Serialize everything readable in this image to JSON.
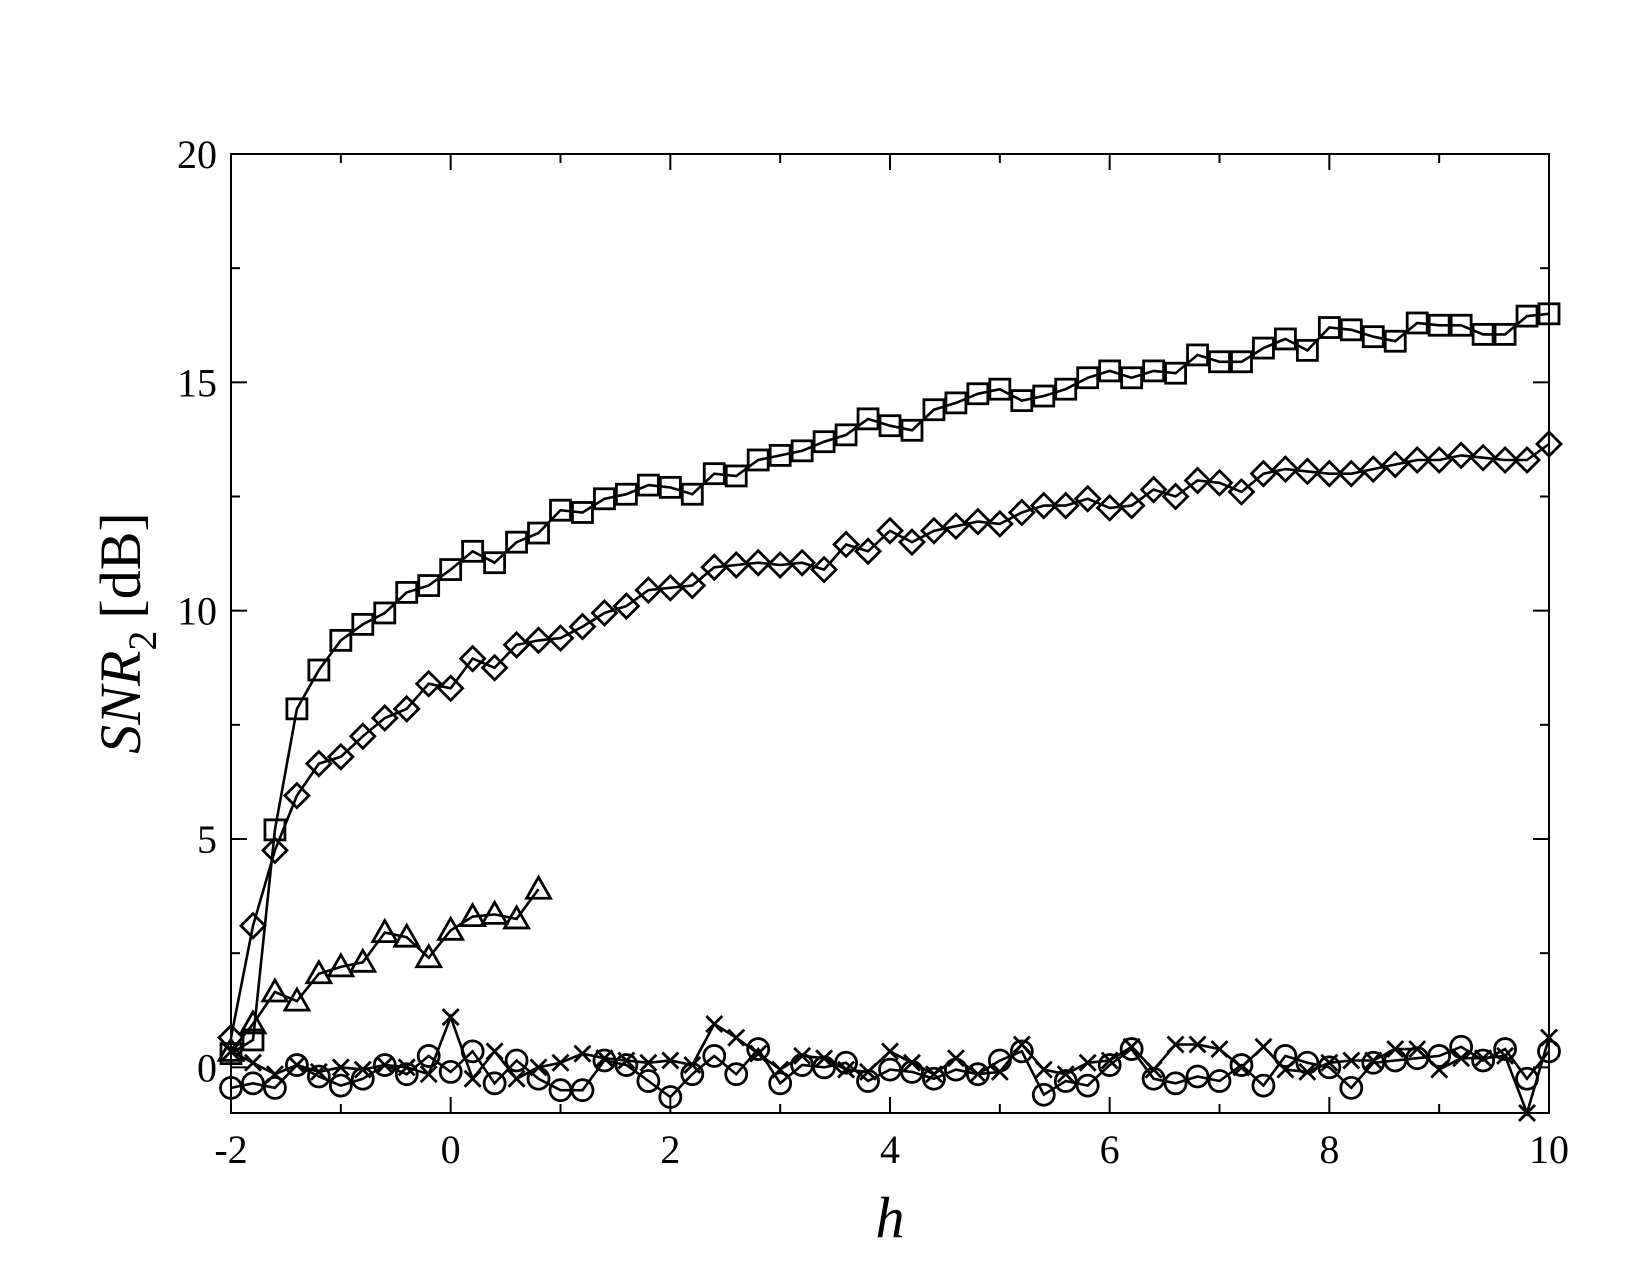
{
  "chart_data": {
    "type": "line",
    "xlabel": "h",
    "ylabel": {
      "main": "SNR",
      "subscript": "2",
      "unit": "[dB]"
    },
    "xlim": [
      -2,
      10
    ],
    "ylim": [
      -1,
      20
    ],
    "xticks": [
      -2,
      0,
      2,
      4,
      6,
      8,
      10
    ],
    "yticks": [
      0,
      5,
      10,
      15,
      20
    ],
    "xtick_labels": [
      "-2",
      "0",
      "2",
      "4",
      "6",
      "8",
      "10"
    ],
    "ytick_labels": [
      "0",
      "5",
      "10",
      "15",
      "20"
    ],
    "grid": false,
    "legend": "none",
    "series": [
      {
        "marker": "square",
        "x": [
          -2,
          -1.8,
          -1.6,
          -1.4,
          -1.2,
          -1.0,
          -0.8,
          -0.6,
          -0.4,
          -0.2,
          0,
          0.2,
          0.4,
          0.6,
          0.8,
          1.0,
          1.2,
          1.4,
          1.6,
          1.8,
          2.0,
          2.2,
          2.4,
          2.6,
          2.8,
          3.0,
          3.2,
          3.4,
          3.6,
          3.8,
          4.0,
          4.2,
          4.4,
          4.6,
          4.8,
          5.0,
          5.2,
          5.4,
          5.6,
          5.8,
          6.0,
          6.2,
          6.4,
          6.6,
          6.8,
          7.0,
          7.2,
          7.4,
          7.6,
          7.8,
          8.0,
          8.2,
          8.4,
          8.6,
          8.8,
          9.0,
          9.2,
          9.4,
          9.6,
          9.8,
          10.0
        ],
        "y": [
          0.3,
          0.6,
          5.2,
          7.85,
          8.7,
          9.35,
          9.7,
          9.95,
          10.4,
          10.55,
          10.9,
          11.3,
          11.05,
          11.5,
          11.7,
          12.2,
          12.15,
          12.45,
          12.55,
          12.75,
          12.7,
          12.55,
          13.0,
          12.95,
          13.3,
          13.4,
          13.5,
          13.7,
          13.85,
          14.2,
          14.05,
          13.95,
          14.4,
          14.55,
          14.75,
          14.85,
          14.6,
          14.7,
          14.85,
          15.1,
          15.25,
          15.1,
          15.25,
          15.2,
          15.6,
          15.45,
          15.45,
          15.75,
          15.95,
          15.7,
          16.2,
          16.15,
          16.0,
          15.9,
          16.3,
          16.25,
          16.25,
          16.05,
          16.05,
          16.45,
          16.5
        ]
      },
      {
        "marker": "diamond",
        "x": [
          -2,
          -1.8,
          -1.6,
          -1.4,
          -1.2,
          -1.0,
          -0.8,
          -0.6,
          -0.4,
          -0.2,
          0,
          0.2,
          0.4,
          0.6,
          0.8,
          1.0,
          1.2,
          1.4,
          1.6,
          1.8,
          2.0,
          2.2,
          2.4,
          2.6,
          2.8,
          3.0,
          3.2,
          3.4,
          3.6,
          3.8,
          4.0,
          4.2,
          4.4,
          4.6,
          4.8,
          5.0,
          5.2,
          5.4,
          5.6,
          5.8,
          6.0,
          6.2,
          6.4,
          6.6,
          6.8,
          7.0,
          7.2,
          7.4,
          7.6,
          7.8,
          8.0,
          8.2,
          8.4,
          8.6,
          8.8,
          9.0,
          9.2,
          9.4,
          9.6,
          9.8,
          10.0
        ],
        "y": [
          0.65,
          3.1,
          4.75,
          5.95,
          6.65,
          6.8,
          7.25,
          7.65,
          7.85,
          8.4,
          8.3,
          8.95,
          8.75,
          9.25,
          9.35,
          9.4,
          9.65,
          9.95,
          10.1,
          10.45,
          10.5,
          10.55,
          10.95,
          11.0,
          11.05,
          11.0,
          11.05,
          10.9,
          11.45,
          11.3,
          11.75,
          11.5,
          11.75,
          11.85,
          11.95,
          11.9,
          12.15,
          12.3,
          12.3,
          12.45,
          12.25,
          12.3,
          12.65,
          12.5,
          12.85,
          12.8,
          12.6,
          13.0,
          13.1,
          13.05,
          13.0,
          13.0,
          13.1,
          13.2,
          13.3,
          13.3,
          13.4,
          13.35,
          13.3,
          13.3,
          13.65
        ]
      },
      {
        "marker": "triangle",
        "x": [
          -2,
          -1.8,
          -1.6,
          -1.4,
          -1.2,
          -1.0,
          -0.8,
          -0.6,
          -0.4,
          -0.2,
          0,
          0.2,
          0.4,
          0.6,
          0.8
        ],
        "y": [
          0.35,
          0.95,
          1.65,
          1.45,
          2.05,
          2.2,
          2.3,
          2.95,
          2.85,
          2.4,
          3.0,
          3.3,
          3.35,
          3.25,
          3.9
        ]
      },
      {
        "marker": "x",
        "x": [
          -2,
          -1.8,
          -1.6,
          -1.4,
          -1.2,
          -1.0,
          -0.8,
          -0.6,
          -0.4,
          -0.2,
          0,
          0.2,
          0.4,
          0.6,
          0.8,
          1.0,
          1.2,
          1.4,
          1.6,
          1.8,
          2.0,
          2.2,
          2.4,
          2.6,
          2.8,
          3.0,
          3.2,
          3.4,
          3.6,
          3.8,
          4.0,
          4.2,
          4.4,
          4.6,
          4.8,
          5.0,
          5.2,
          5.4,
          5.6,
          5.8,
          6.0,
          6.2,
          6.4,
          6.6,
          6.8,
          7.0,
          7.2,
          7.4,
          7.6,
          7.8,
          8.0,
          8.2,
          8.4,
          8.6,
          8.8,
          9.0,
          9.2,
          9.4,
          9.6,
          9.8,
          10.0
        ],
        "y": [
          0.35,
          0.1,
          -0.15,
          0.05,
          -0.1,
          0.0,
          -0.05,
          0.05,
          0.0,
          -0.15,
          1.1,
          -0.25,
          0.35,
          -0.25,
          0.0,
          0.1,
          0.3,
          0.2,
          0.15,
          0.1,
          0.15,
          0.05,
          0.95,
          0.65,
          0.3,
          -0.05,
          0.25,
          0.2,
          -0.05,
          -0.1,
          0.35,
          0.1,
          -0.15,
          0.2,
          -0.15,
          -0.1,
          0.5,
          -0.05,
          -0.15,
          0.1,
          0.15,
          0.45,
          -0.05,
          0.5,
          0.5,
          0.4,
          0.0,
          0.45,
          -0.05,
          -0.1,
          0.1,
          0.15,
          0.15,
          0.4,
          0.4,
          -0.05,
          0.2,
          0.2,
          0.25,
          -1.0,
          0.65
        ]
      },
      {
        "marker": "circle",
        "x": [
          -2,
          -1.8,
          -1.6,
          -1.4,
          -1.2,
          -1.0,
          -0.8,
          -0.6,
          -0.4,
          -0.2,
          0,
          0.2,
          0.4,
          0.6,
          0.8,
          1.0,
          1.2,
          1.4,
          1.6,
          1.8,
          2.0,
          2.2,
          2.4,
          2.6,
          2.8,
          3.0,
          3.2,
          3.4,
          3.6,
          3.8,
          4.0,
          4.2,
          4.4,
          4.6,
          4.8,
          5.0,
          5.2,
          5.4,
          5.6,
          5.8,
          6.0,
          6.2,
          6.4,
          6.6,
          6.8,
          7.0,
          7.2,
          7.4,
          7.6,
          7.8,
          8.0,
          8.2,
          8.4,
          8.6,
          8.8,
          9.0,
          9.2,
          9.4,
          9.6,
          9.8,
          10.0
        ],
        "y": [
          -0.45,
          -0.35,
          -0.45,
          0.05,
          -0.2,
          -0.4,
          -0.25,
          0.05,
          -0.15,
          0.25,
          -0.1,
          0.35,
          -0.35,
          0.15,
          -0.25,
          -0.5,
          -0.5,
          0.15,
          0.05,
          -0.3,
          -0.65,
          -0.15,
          0.25,
          -0.15,
          0.4,
          -0.35,
          0.05,
          0.0,
          0.1,
          -0.3,
          -0.05,
          -0.1,
          -0.25,
          -0.05,
          -0.15,
          0.15,
          0.35,
          -0.6,
          -0.3,
          -0.4,
          0.05,
          0.4,
          -0.25,
          -0.35,
          -0.2,
          -0.3,
          0.05,
          -0.4,
          0.25,
          0.1,
          0.0,
          -0.45,
          0.1,
          0.15,
          0.2,
          0.25,
          0.45,
          0.15,
          0.4,
          -0.25,
          0.35
        ]
      }
    ]
  }
}
